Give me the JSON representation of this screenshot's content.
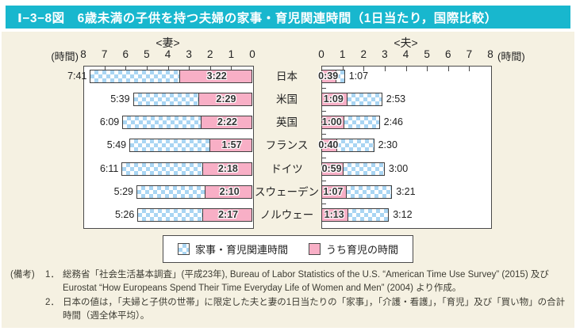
{
  "title": "Ⅰ−3−8図　6歳未満の子供を持つ夫婦の家事・育児関連時間（1日当たり，国際比較）",
  "colors": {
    "title_bg": "#18b7ce",
    "panel_bg": "#f5f1e2",
    "bar_blue": "#a9d5f3",
    "bar_pink": "#f8afc6",
    "bar_border": "#3f3f3f"
  },
  "chart_data": {
    "type": "bar",
    "orientation": "horizontal",
    "unit_label": "(時間)",
    "xlim": [
      0,
      8
    ],
    "axis_ticks": [
      0,
      1,
      2,
      3,
      4,
      5,
      6,
      7,
      8
    ],
    "grid": false,
    "legend_position": "bottom",
    "panels": [
      {
        "id": "wife",
        "header": "<妻>",
        "direction": "right-to-left"
      },
      {
        "id": "husband",
        "header": "<夫>",
        "direction": "left-to-right"
      }
    ],
    "categories": [
      "日本",
      "米国",
      "英国",
      "フランス",
      "ドイツ",
      "スウェーデン",
      "ノルウェー"
    ],
    "series": [
      {
        "name": "wife_total",
        "labels": [
          "7:41",
          "5:39",
          "6:09",
          "5:49",
          "6:11",
          "5:29",
          "5:26"
        ],
        "minutes": [
          461,
          339,
          369,
          349,
          371,
          329,
          326
        ]
      },
      {
        "name": "wife_child",
        "labels": [
          "3:22",
          "2:29",
          "2:22",
          "1:57",
          "2:18",
          "2:10",
          "2:17"
        ],
        "minutes": [
          202,
          149,
          142,
          117,
          138,
          130,
          137
        ]
      },
      {
        "name": "husband_total",
        "labels": [
          "1:07",
          "2:53",
          "2:46",
          "2:30",
          "3:00",
          "3:21",
          "3:12"
        ],
        "minutes": [
          67,
          173,
          166,
          150,
          180,
          201,
          192
        ]
      },
      {
        "name": "husband_child",
        "labels": [
          "0:39",
          "1:09",
          "1:00",
          "0:40",
          "0:59",
          "1:07",
          "1:13"
        ],
        "minutes": [
          39,
          69,
          60,
          40,
          59,
          67,
          73
        ]
      }
    ],
    "legend": [
      {
        "label": "家事・育児関連時間",
        "swatch": "blue-checker"
      },
      {
        "label": "うち育児の時間",
        "swatch": "pink"
      }
    ]
  },
  "notes": {
    "prefix": "(備考)",
    "items": [
      {
        "num": "1．",
        "text": "総務省「社会生活基本調査」(平成23年), Bureau of Labor Statistics of the U.S. “American Time Use Survey” (2015) 及び Eurostat “How Europeans Spend Their Time Everyday Life of Women and Men” (2004) より作成。"
      },
      {
        "num": "2．",
        "text": "日本の値は，「夫婦と子供の世帯」に限定した夫と妻の1日当たりの「家事」，「介護・看護」，「育児」及び「買い物」の合計時間（週全体平均）。"
      }
    ]
  }
}
